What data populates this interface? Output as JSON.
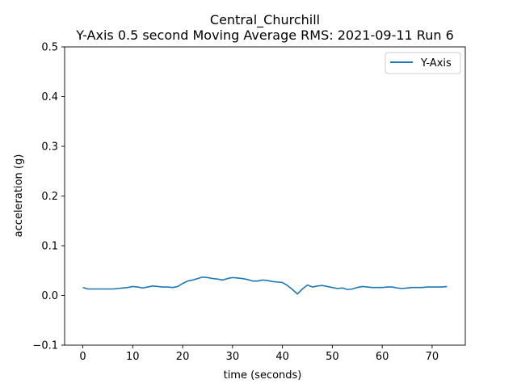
{
  "chart_data": {
    "type": "line",
    "title": "Central_Churchill",
    "subtitle": "Y-Axis 0.5 second Moving Average RMS: 2021-09-11 Run 6",
    "xlabel": "time (seconds)",
    "ylabel": "acceleration (g)",
    "xlim": [
      -3.65,
      76.65
    ],
    "ylim": [
      -0.1,
      0.5
    ],
    "xticks": [
      "0",
      "10",
      "20",
      "30",
      "40",
      "50",
      "60",
      "70"
    ],
    "yticks": [
      "−0.1",
      "0.0",
      "0.1",
      "0.2",
      "0.3",
      "0.4",
      "0.5"
    ],
    "grid": false,
    "legend_position": "top-right",
    "series": [
      {
        "name": "Y-Axis",
        "color": "#1f77b4",
        "x": [
          0,
          1,
          2,
          3,
          4,
          5,
          6,
          7,
          8,
          9,
          10,
          11,
          12,
          13,
          14,
          15,
          16,
          17,
          18,
          19,
          20,
          21,
          22,
          23,
          24,
          25,
          26,
          27,
          28,
          29,
          30,
          31,
          32,
          33,
          34,
          35,
          36,
          37,
          38,
          39,
          40,
          41,
          42,
          43,
          44,
          45,
          46,
          47,
          48,
          49,
          50,
          51,
          52,
          53,
          54,
          55,
          56,
          57,
          58,
          59,
          60,
          61,
          62,
          63,
          64,
          65,
          66,
          67,
          68,
          69,
          70,
          71,
          72,
          73
        ],
        "y": [
          0.016,
          0.013,
          0.013,
          0.013,
          0.013,
          0.013,
          0.013,
          0.014,
          0.015,
          0.016,
          0.018,
          0.017,
          0.015,
          0.017,
          0.019,
          0.018,
          0.017,
          0.017,
          0.016,
          0.018,
          0.024,
          0.029,
          0.031,
          0.034,
          0.037,
          0.036,
          0.034,
          0.033,
          0.031,
          0.034,
          0.036,
          0.035,
          0.034,
          0.032,
          0.029,
          0.029,
          0.031,
          0.03,
          0.028,
          0.027,
          0.026,
          0.02,
          0.012,
          0.003,
          0.013,
          0.021,
          0.017,
          0.019,
          0.02,
          0.018,
          0.016,
          0.014,
          0.015,
          0.012,
          0.013,
          0.016,
          0.018,
          0.017,
          0.016,
          0.016,
          0.016,
          0.017,
          0.017,
          0.015,
          0.014,
          0.015,
          0.016,
          0.016,
          0.016,
          0.017,
          0.017,
          0.017,
          0.017,
          0.018
        ]
      }
    ]
  }
}
